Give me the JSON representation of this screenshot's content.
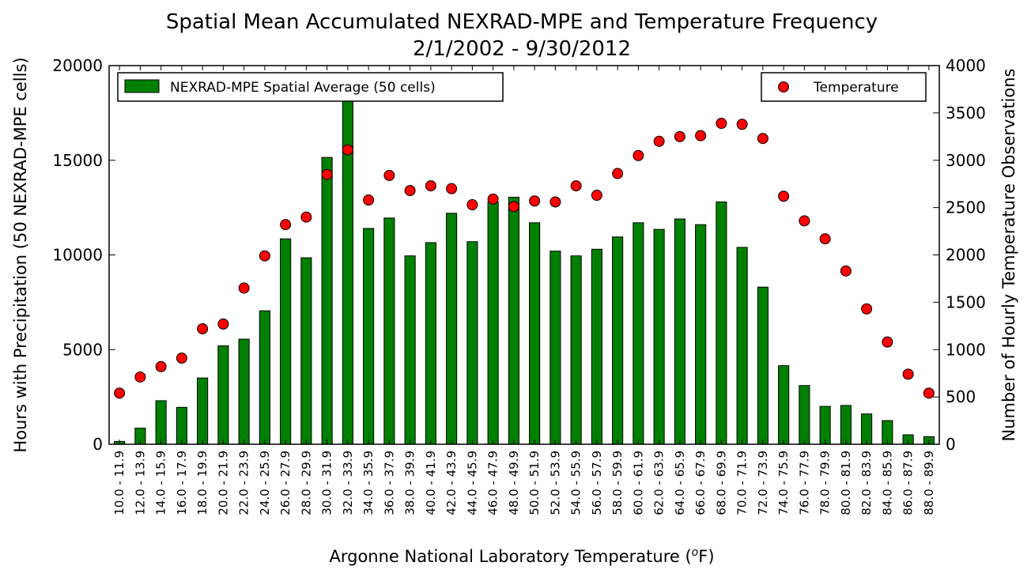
{
  "chart_data": {
    "type": "bar",
    "title": "Spatial Mean Accumulated NEXRAD-MPE and Temperature Frequency",
    "subtitle": "2/1/2002 - 9/30/2012",
    "xlabel": "Argonne National Laboratory Temperature (",
    "xlabel_superscript": "o",
    "xlabel_suffix": "F)",
    "ylabel": "Hours with Precipitation (50 NEXRAD-MPE cells)",
    "y2label": "Number of Hourly Temperature Observations",
    "ylim": [
      0,
      20000
    ],
    "y2lim": [
      0,
      4000
    ],
    "yticks": [
      0,
      5000,
      10000,
      15000,
      20000
    ],
    "y2ticks": [
      0,
      500,
      1000,
      1500,
      2000,
      2500,
      3000,
      3500,
      4000
    ],
    "legend_left_placement": "upper-left",
    "legend_right_placement": "upper-right",
    "grid": false,
    "categories": [
      "10.0 - 11.9",
      "12.0 - 13.9",
      "14.0 - 15.9",
      "16.0 - 17.9",
      "18.0 - 19.9",
      "20.0 - 21.9",
      "22.0 - 23.9",
      "24.0 - 25.9",
      "26.0 - 27.9",
      "28.0 - 29.9",
      "30.0 - 31.9",
      "32.0 - 33.9",
      "34.0 - 35.9",
      "36.0 - 37.9",
      "38.0 - 39.9",
      "40.0 - 41.9",
      "42.0 - 43.9",
      "44.0 - 45.9",
      "46.0 - 47.9",
      "48.0 - 49.9",
      "50.0 - 51.9",
      "52.0 - 53.9",
      "54.0 - 55.9",
      "56.0 - 57.9",
      "58.0 - 59.9",
      "60.0 - 61.9",
      "62.0 - 63.9",
      "64.0 - 65.9",
      "66.0 - 67.9",
      "68.0 - 69.9",
      "70.0 - 71.9",
      "72.0 - 73.9",
      "74.0 - 75.9",
      "76.0 - 77.9",
      "78.0 - 79.9",
      "80.0 - 81.9",
      "82.0 - 83.9",
      "84.0 - 85.9",
      "86.0 - 87.9",
      "88.0 - 89.9"
    ],
    "series": [
      {
        "name": "NEXRAD-MPE Spatial Average (50 cells)",
        "kind": "bar",
        "axis": "left",
        "color": "#008000",
        "values": [
          150,
          850,
          2300,
          1950,
          3500,
          5200,
          5550,
          7050,
          10850,
          9850,
          15150,
          18400,
          11400,
          11950,
          9950,
          10650,
          12200,
          10700,
          12800,
          13050,
          11700,
          10200,
          9950,
          10300,
          10950,
          11700,
          11350,
          11900,
          11600,
          12800,
          10400,
          8300,
          4150,
          3100,
          2000,
          2050,
          1600,
          1250,
          500,
          400
        ]
      },
      {
        "name": "Temperature",
        "kind": "scatter",
        "axis": "right",
        "color": "#ff0000",
        "values": [
          540,
          710,
          820,
          910,
          1220,
          1270,
          1650,
          1990,
          2320,
          2400,
          2850,
          3110,
          2580,
          2840,
          2680,
          2730,
          2700,
          2530,
          2590,
          2510,
          2570,
          2560,
          2730,
          2630,
          2860,
          3050,
          3200,
          3250,
          3260,
          3390,
          3380,
          3230,
          2620,
          2360,
          2170,
          1830,
          1430,
          1080,
          740,
          540
        ]
      }
    ]
  }
}
